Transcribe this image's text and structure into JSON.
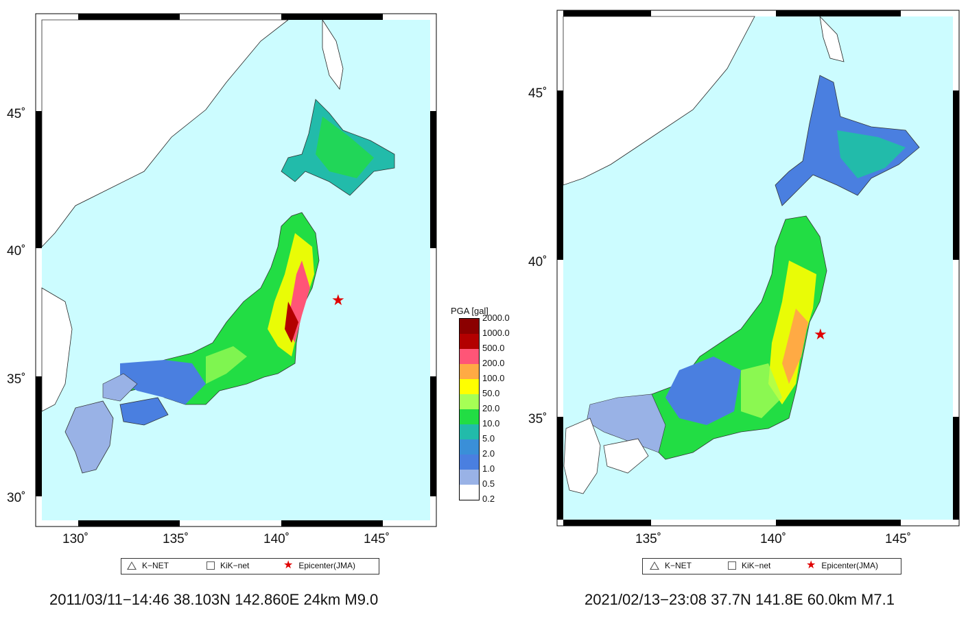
{
  "left_map": {
    "lat_ticks": [
      "45˚",
      "40˚",
      "35˚",
      "30˚"
    ],
    "lon_ticks": [
      "130˚",
      "135˚",
      "140˚",
      "145˚"
    ],
    "legend": {
      "knet": "K−NET",
      "kiknet": "KiK−net",
      "epicenter": "Epicenter(JMA)"
    },
    "caption": "2011/03/11−14:46 38.103N 142.860E 24km M9.0"
  },
  "right_map": {
    "lat_ticks": [
      "45˚",
      "40˚",
      "35˚"
    ],
    "lon_ticks": [
      "135˚",
      "140˚",
      "145˚"
    ],
    "legend": {
      "knet": "K−NET",
      "kiknet": "KiK−net",
      "epicenter": "Epicenter(JMA)"
    },
    "caption": "2021/02/13−23:08 37.7N 141.8E 60.0km M7.1"
  },
  "pga_scale": {
    "title": "PGA [gal]",
    "labels": [
      "2000.0",
      "1000.0",
      "500.0",
      "200.0",
      "100.0",
      "50.0",
      "20.0",
      "10.0",
      "5.0",
      "2.0",
      "1.0",
      "0.5",
      "0.2"
    ],
    "colors": [
      "#8b0000",
      "#b30000",
      "#ff5577",
      "#ffaa44",
      "#ffff00",
      "#a6ff55",
      "#22dd44",
      "#22bbaa",
      "#3a8fd8",
      "#4a7fe0",
      "#99b2e6",
      "#ffffff"
    ]
  },
  "colors": {
    "ocean": "#ccfcff",
    "land": "#ffffff",
    "epicenter": "#e00000"
  }
}
